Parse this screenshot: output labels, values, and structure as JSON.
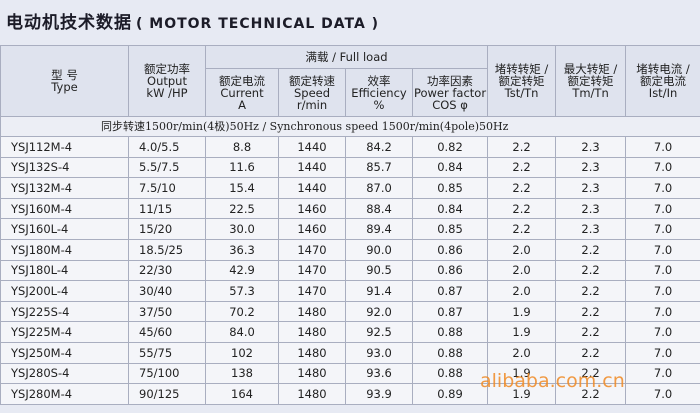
{
  "title": {
    "cn": "电动机技术数据",
    "en": "( MOTOR TECHNICAL DATA )"
  },
  "header": {
    "full_load": "满载 / Full load",
    "columns": [
      [
        "型 号",
        "Type"
      ],
      [
        "额定功率",
        "Output",
        "kW /HP"
      ],
      [
        "额定电流",
        "Current",
        "A"
      ],
      [
        "额定转速",
        "Speed",
        "r/min"
      ],
      [
        "效率",
        "Efficiency",
        "%"
      ],
      [
        "功率因素",
        "Power factor",
        "COS φ"
      ],
      [
        "堵转转矩 /",
        "额定转矩",
        "Tst/Tn"
      ],
      [
        "最大转矩 /",
        "额定转矩",
        "Tm/Tn"
      ],
      [
        "堵转电流 /",
        "额定电流",
        "Ist/In"
      ]
    ]
  },
  "section": "同步转速1500r/min(4极)50Hz / Synchronous speed 1500r/min(4pole)50Hz",
  "rows": [
    [
      "YSJ112M-4",
      "4.0/5.5",
      "8.8",
      "1440",
      "84.2",
      "0.82",
      "2.2",
      "2.3",
      "7.0"
    ],
    [
      "YSJ132S-4",
      "5.5/7.5",
      "11.6",
      "1440",
      "85.7",
      "0.84",
      "2.2",
      "2.3",
      "7.0"
    ],
    [
      "YSJ132M-4",
      "7.5/10",
      "15.4",
      "1440",
      "87.0",
      "0.85",
      "2.2",
      "2.3",
      "7.0"
    ],
    [
      "YSJ160M-4",
      "11/15",
      "22.5",
      "1460",
      "88.4",
      "0.84",
      "2.2",
      "2.3",
      "7.0"
    ],
    [
      "YSJ160L-4",
      "15/20",
      "30.0",
      "1460",
      "89.4",
      "0.85",
      "2.2",
      "2.3",
      "7.0"
    ],
    [
      "YSJ180M-4",
      "18.5/25",
      "36.3",
      "1470",
      "90.0",
      "0.86",
      "2.0",
      "2.2",
      "7.0"
    ],
    [
      "YSJ180L-4",
      "22/30",
      "42.9",
      "1470",
      "90.5",
      "0.86",
      "2.0",
      "2.2",
      "7.0"
    ],
    [
      "YSJ200L-4",
      "30/40",
      "57.3",
      "1470",
      "91.4",
      "0.87",
      "2.0",
      "2.2",
      "7.0"
    ],
    [
      "YSJ225S-4",
      "37/50",
      "70.2",
      "1480",
      "92.0",
      "0.87",
      "1.9",
      "2.2",
      "7.0"
    ],
    [
      "YSJ225M-4",
      "45/60",
      "84.0",
      "1480",
      "92.5",
      "0.88",
      "1.9",
      "2.2",
      "7.0"
    ],
    [
      "YSJ250M-4",
      "55/75",
      "102",
      "1480",
      "93.0",
      "0.88",
      "2.0",
      "2.2",
      "7.0"
    ],
    [
      "YSJ280S-4",
      "75/100",
      "138",
      "1480",
      "93.6",
      "0.88",
      "1.9",
      "2.2",
      "7.0"
    ],
    [
      "YSJ280M-4",
      "90/125",
      "164",
      "1480",
      "93.9",
      "0.89",
      "1.9",
      "2.2",
      "7.0"
    ]
  ],
  "watermark": "alibaba.com.cn"
}
